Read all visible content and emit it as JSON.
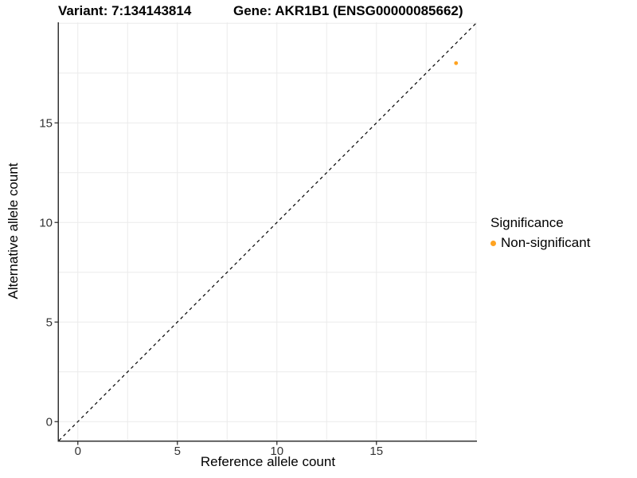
{
  "title": {
    "variant": "Variant: 7:134143814",
    "gene": "Gene: AKR1B1 (ENSG00000085662)"
  },
  "chart_data": {
    "type": "scatter",
    "xlabel": "Reference allele count",
    "ylabel": "Alternative allele count",
    "xlim": [
      -0.95,
      20.05
    ],
    "ylim": [
      -0.95,
      20.05
    ],
    "xticks": [
      0,
      5,
      10,
      15
    ],
    "yticks": [
      0,
      5,
      10,
      15
    ],
    "grid": true,
    "grid_interval": 2.5,
    "reference_line": {
      "type": "identity y=x",
      "style": "dashed",
      "color": "#000000"
    },
    "series": [
      {
        "name": "Non-significant",
        "color": "#FFA320",
        "points": [
          {
            "x": 19,
            "y": 18
          }
        ]
      }
    ]
  },
  "legend": {
    "title": "Significance",
    "position": "right",
    "items": [
      {
        "label": "Non-significant",
        "color": "#FFA320"
      }
    ]
  },
  "colors": {
    "background": "#FFFFFF",
    "grid": "#EBEBEB",
    "axis_line": "#333333",
    "tick_label": "#333333"
  }
}
